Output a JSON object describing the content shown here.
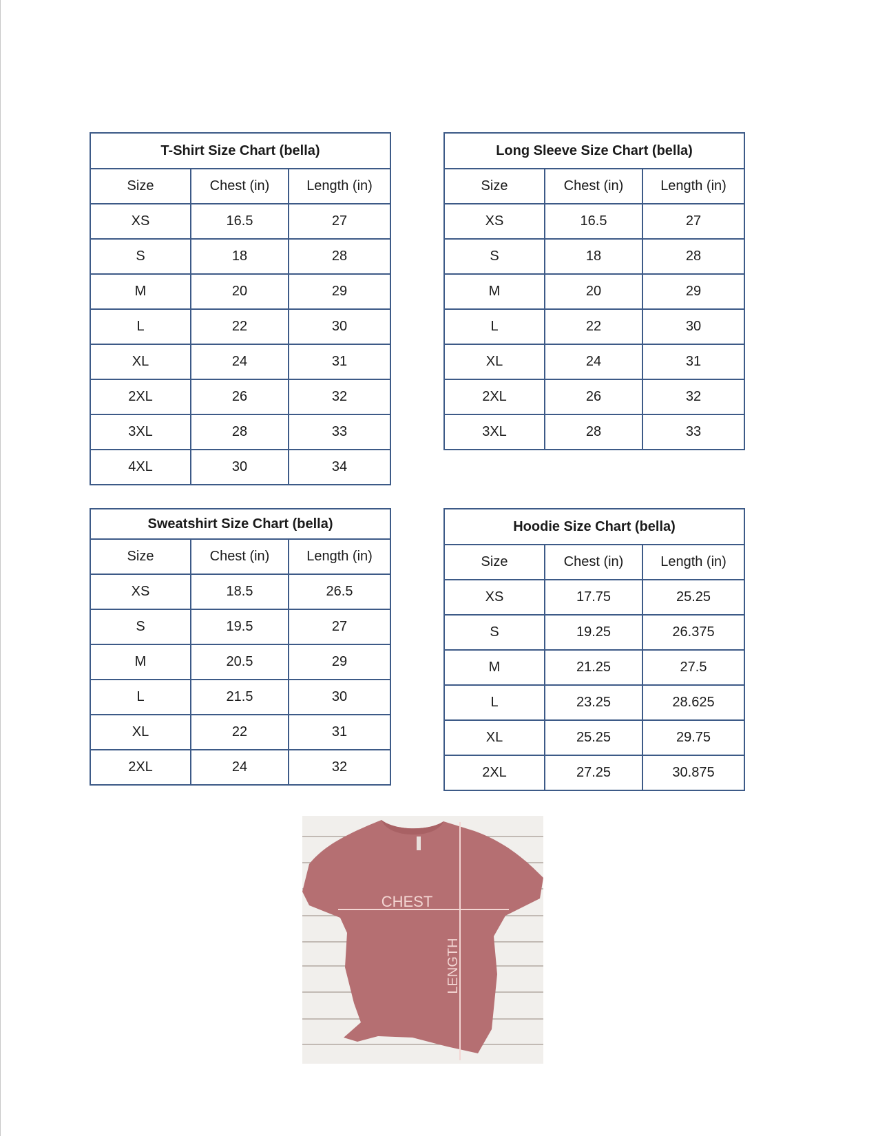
{
  "tables": [
    {
      "id": "t-tshirt",
      "name": "tshirt-size-chart",
      "title": "T-Shirt Size Chart  (bella)",
      "headers": [
        "Size",
        "Chest (in)",
        "Length (in)"
      ],
      "rows": [
        [
          "XS",
          "16.5",
          "27"
        ],
        [
          "S",
          "18",
          "28"
        ],
        [
          "M",
          "20",
          "29"
        ],
        [
          "L",
          "22",
          "30"
        ],
        [
          "XL",
          "24",
          "31"
        ],
        [
          "2XL",
          "26",
          "32"
        ],
        [
          "3XL",
          "28",
          "33"
        ],
        [
          "4XL",
          "30",
          "34"
        ]
      ]
    },
    {
      "id": "t-longsleeve",
      "name": "long-sleeve-size-chart",
      "title": "Long Sleeve Size Chart  (bella)",
      "headers": [
        "Size",
        "Chest (in)",
        "Length (in)"
      ],
      "rows": [
        [
          "XS",
          "16.5",
          "27"
        ],
        [
          "S",
          "18",
          "28"
        ],
        [
          "M",
          "20",
          "29"
        ],
        [
          "L",
          "22",
          "30"
        ],
        [
          "XL",
          "24",
          "31"
        ],
        [
          "2XL",
          "26",
          "32"
        ],
        [
          "3XL",
          "28",
          "33"
        ]
      ]
    },
    {
      "id": "t-sweatshirt",
      "name": "sweatshirt-size-chart",
      "title": "Sweatshirt Size Chart (bella)",
      "headers": [
        "Size",
        "Chest (in)",
        "Length (in)"
      ],
      "rows": [
        [
          "XS",
          "18.5",
          "26.5"
        ],
        [
          "S",
          "19.5",
          "27"
        ],
        [
          "M",
          "20.5",
          "29"
        ],
        [
          "L",
          "21.5",
          "30"
        ],
        [
          "XL",
          "22",
          "31"
        ],
        [
          "2XL",
          "24",
          "32"
        ]
      ]
    },
    {
      "id": "t-hoodie",
      "name": "hoodie-size-chart",
      "title": "Hoodie Size Chart (bella)",
      "headers": [
        "Size",
        "Chest (in)",
        "Length (in)"
      ],
      "rows": [
        [
          "XS",
          "17.75",
          "25.25"
        ],
        [
          "S",
          "19.25",
          "26.375"
        ],
        [
          "M",
          "21.25",
          "27.5"
        ],
        [
          "L",
          "23.25",
          "28.625"
        ],
        [
          "XL",
          "25.25",
          "29.75"
        ],
        [
          "2XL",
          "27.25",
          "30.875"
        ]
      ]
    }
  ],
  "photo": {
    "chest_label": "CHEST",
    "length_label": "LENGTH",
    "shirt_color": "#b56f72"
  },
  "colors": {
    "table_border": "#3d5a87"
  }
}
